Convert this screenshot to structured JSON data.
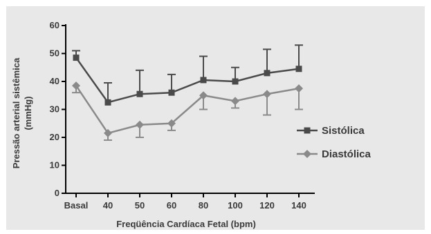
{
  "chart_data": {
    "type": "line",
    "xlabel": "Freqüência Cardíaca Fetal (bpm)",
    "ylabel_line1": "Pressão arterial sistêmica",
    "ylabel_line2": "(mmHg)",
    "categories": [
      "Basal",
      "40",
      "50",
      "60",
      "80",
      "100",
      "120",
      "140"
    ],
    "ylim": [
      0,
      60
    ],
    "yticks": [
      0,
      10,
      20,
      30,
      40,
      50,
      60
    ],
    "grid": false,
    "legend_position": "right",
    "series": [
      {
        "name": "Sistólica",
        "marker": "square",
        "color": "#4a4a4a",
        "values": [
          48.5,
          32.5,
          35.5,
          36,
          40.5,
          40,
          43,
          44.5
        ],
        "error": [
          2.5,
          7,
          8.5,
          6.5,
          8.5,
          5,
          8.5,
          8.5
        ]
      },
      {
        "name": "Diastólica",
        "marker": "diamond",
        "color": "#8a8a8a",
        "values": [
          38.5,
          21.5,
          24.5,
          25,
          35,
          33,
          35.5,
          37.5
        ],
        "error": [
          2.5,
          2.5,
          4.5,
          2.5,
          5,
          2.5,
          7.5,
          7.5
        ]
      }
    ]
  }
}
